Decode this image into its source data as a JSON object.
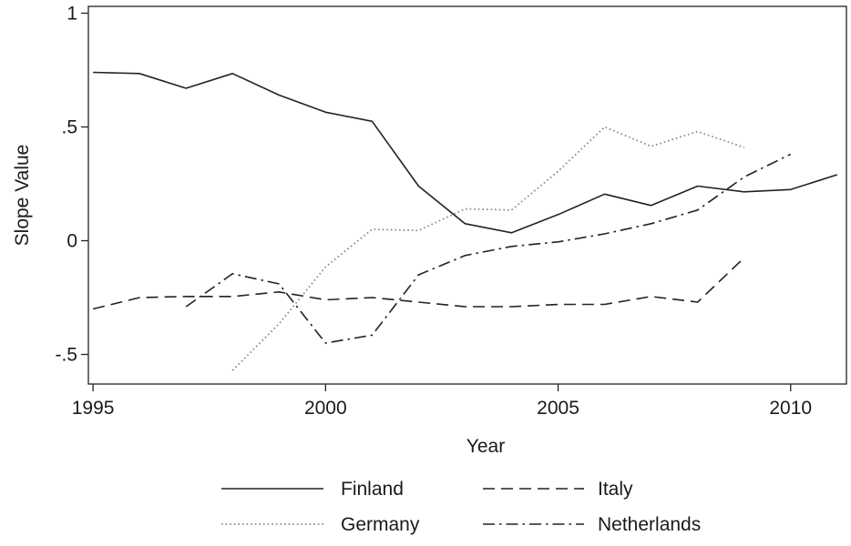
{
  "chart_data": {
    "type": "line",
    "title": "",
    "xlabel": "Year",
    "ylabel": "Slope Value",
    "xlim": [
      1994.9,
      2011.2
    ],
    "ylim": [
      -0.63,
      1.03
    ],
    "x_ticks": [
      1995,
      2000,
      2005,
      2010
    ],
    "x_tick_labels": [
      "1995",
      "2000",
      "2005",
      "2010"
    ],
    "y_ticks": [
      -0.5,
      0,
      0.5,
      1
    ],
    "y_tick_labels": [
      "-.5",
      "0",
      ".5",
      "1"
    ],
    "grid": false,
    "legend_position": "bottom",
    "series": [
      {
        "name": "Finland",
        "style": "solid",
        "color": "#222222",
        "x": [
          1995,
          1996,
          1997,
          1998,
          1999,
          2000,
          2001,
          2002,
          2003,
          2004,
          2005,
          2006,
          2007,
          2008,
          2009,
          2010,
          2011
        ],
        "y": [
          0.74,
          0.735,
          0.67,
          0.735,
          0.64,
          0.565,
          0.525,
          0.24,
          0.075,
          0.035,
          0.115,
          0.205,
          0.155,
          0.24,
          0.215,
          0.225,
          0.29
        ]
      },
      {
        "name": "Italy",
        "style": "dash",
        "color": "#222222",
        "x": [
          1995,
          1996,
          1997,
          1998,
          1999,
          2000,
          2001,
          2002,
          2003,
          2004,
          2005,
          2006,
          2007,
          2008,
          2009
        ],
        "y": [
          -0.3,
          -0.25,
          -0.245,
          -0.245,
          -0.225,
          -0.26,
          -0.25,
          -0.27,
          -0.29,
          -0.29,
          -0.28,
          -0.28,
          -0.245,
          -0.27,
          -0.075
        ]
      },
      {
        "name": "Germany",
        "style": "dot",
        "color": "#8a8a8a",
        "x": [
          1998,
          1999,
          2000,
          2001,
          2002,
          2003,
          2004,
          2005,
          2006,
          2007,
          2008,
          2009
        ],
        "y": [
          -0.57,
          -0.365,
          -0.115,
          0.05,
          0.045,
          0.14,
          0.135,
          0.305,
          0.5,
          0.415,
          0.48,
          0.41
        ]
      },
      {
        "name": "Netherlands",
        "style": "dashdot",
        "color": "#222222",
        "x": [
          1997,
          1998,
          1999,
          2000,
          2001,
          2002,
          2003,
          2004,
          2005,
          2006,
          2007,
          2008,
          2009,
          2010
        ],
        "y": [
          -0.29,
          -0.145,
          -0.19,
          -0.45,
          -0.415,
          -0.15,
          -0.065,
          -0.025,
          -0.005,
          0.03,
          0.075,
          0.135,
          0.28,
          0.38
        ]
      }
    ]
  }
}
